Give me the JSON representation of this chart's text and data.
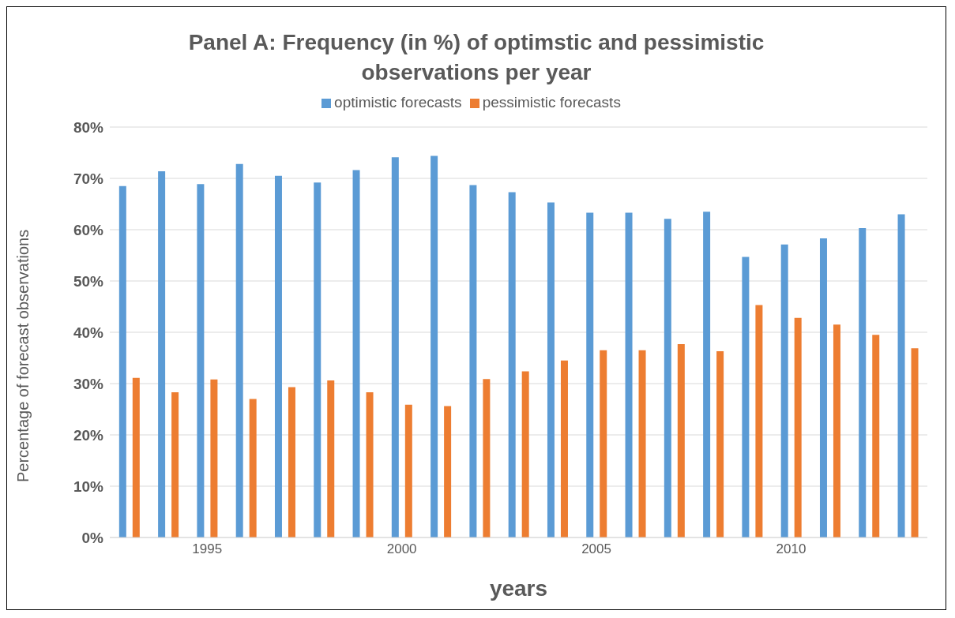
{
  "chart_data": {
    "type": "bar",
    "title": "Panel A: Frequency (in %) of optimstic and pessimistic observations per year",
    "xlabel": "years",
    "ylabel": "Percentage of forecast observations",
    "categories": [
      null,
      null,
      "1995",
      null,
      null,
      null,
      null,
      "2000",
      null,
      null,
      null,
      null,
      "2005",
      null,
      null,
      null,
      null,
      "2010",
      null,
      null,
      null
    ],
    "series": [
      {
        "name": "optimistic forecasts",
        "color": "#5b9bd5",
        "values": [
          68.5,
          71.4,
          68.9,
          72.8,
          70.5,
          69.2,
          71.6,
          74.1,
          74.4,
          68.7,
          67.3,
          65.3,
          63.3,
          63.3,
          62.1,
          63.5,
          54.7,
          57.1,
          58.3,
          60.3,
          63.0
        ]
      },
      {
        "name": "pessimistic forecasts",
        "color": "#ed7d31",
        "values": [
          31.1,
          28.3,
          30.8,
          27.0,
          29.3,
          30.6,
          28.3,
          25.9,
          25.6,
          30.9,
          32.4,
          34.5,
          36.5,
          36.5,
          37.7,
          36.3,
          45.3,
          42.8,
          41.5,
          39.5,
          36.9
        ]
      }
    ],
    "ylim": [
      0,
      80
    ],
    "yticks": [
      {
        "value": 0,
        "label": "0%"
      },
      {
        "value": 10,
        "label": "10%"
      },
      {
        "value": 20,
        "label": "20%"
      },
      {
        "value": 30,
        "label": "30%"
      },
      {
        "value": 40,
        "label": "40%"
      },
      {
        "value": 50,
        "label": "50%"
      },
      {
        "value": 60,
        "label": "60%"
      },
      {
        "value": 70,
        "label": "70%"
      },
      {
        "value": 80,
        "label": "80%"
      }
    ],
    "grid": "y",
    "legend": "top"
  }
}
